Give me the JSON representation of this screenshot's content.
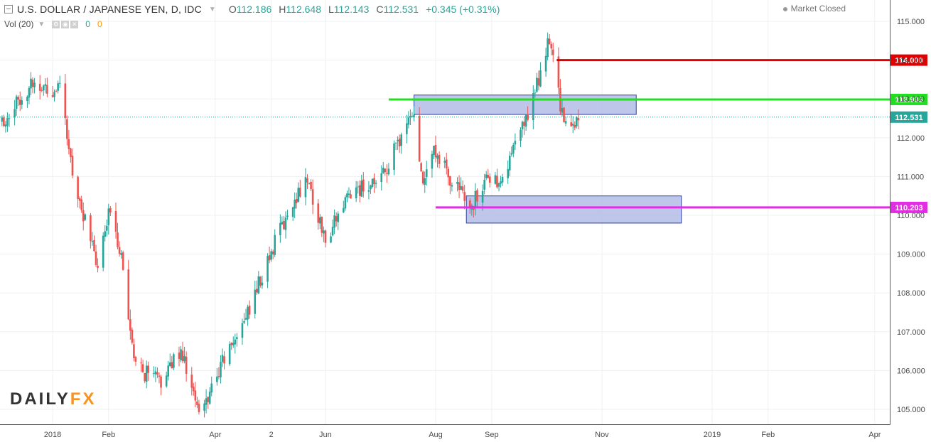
{
  "header": {
    "symbol": "U.S. DOLLAR / JAPANESE YEN, D, IDC",
    "open_label": "O",
    "open": "112.186",
    "high_label": "H",
    "high": "112.648",
    "low_label": "L",
    "low": "112.143",
    "close_label": "C",
    "close": "112.531",
    "change": "+0.345 (+0.31%)",
    "volume_label": "Vol (20)",
    "volume_value_1": "0",
    "volume_value_2": "0",
    "market_status": "Market Closed"
  },
  "watermark": "DAILYFX",
  "colors": {
    "up": "#26a69a",
    "down": "#ef5350",
    "line_114": "#e00000",
    "line_112986": "#22dd22",
    "line_110203": "#e22ee2",
    "last_price": "#26a69a",
    "zone_fill": "#b3bde6",
    "zone_stroke": "#2a3f9e"
  },
  "chart_data": {
    "type": "candlestick",
    "title": "U.S. DOLLAR / JAPANESE YEN, D, IDC",
    "xlabel": "",
    "ylabel": "",
    "ylim": [
      104.0,
      115.0
    ],
    "grid": true,
    "x_ticks": [
      "2018",
      "Feb",
      "Apr",
      "2",
      "Jun",
      "Aug",
      "Sep",
      "Nov",
      "2019",
      "Feb",
      "Apr"
    ],
    "y_ticks": [
      "105.000",
      "106.000",
      "107.000",
      "108.000",
      "109.000",
      "110.000",
      "111.000",
      "112.000",
      "113.000",
      "114.000",
      "115.000"
    ],
    "date_range": [
      "2017-12-04",
      "2018-10-19"
    ],
    "close_path": [
      [
        "2017-12-04",
        112.4
      ],
      [
        "2017-12-20",
        113.4
      ],
      [
        "2018-01-05",
        113.2
      ],
      [
        "2018-01-12",
        111.1
      ],
      [
        "2018-01-26",
        108.6
      ],
      [
        "2018-02-02",
        110.2
      ],
      [
        "2018-02-09",
        108.8
      ],
      [
        "2018-02-15",
        106.1
      ],
      [
        "2018-03-02",
        105.7
      ],
      [
        "2018-03-13",
        106.6
      ],
      [
        "2018-03-23",
        104.8
      ],
      [
        "2018-04-02",
        105.9
      ],
      [
        "2018-04-20",
        107.6
      ],
      [
        "2018-05-03",
        109.2
      ],
      [
        "2018-05-21",
        111.0
      ],
      [
        "2018-06-01",
        109.4
      ],
      [
        "2018-06-15",
        110.6
      ],
      [
        "2018-07-02",
        110.9
      ],
      [
        "2018-07-19",
        112.7
      ],
      [
        "2018-07-25",
        111.0
      ],
      [
        "2018-08-01",
        111.7
      ],
      [
        "2018-08-08",
        111.0
      ],
      [
        "2018-08-20",
        110.2
      ],
      [
        "2018-08-31",
        111.0
      ],
      [
        "2018-09-07",
        110.9
      ],
      [
        "2018-09-20",
        112.5
      ],
      [
        "2018-09-28",
        113.7
      ],
      [
        "2018-10-03",
        114.5
      ],
      [
        "2018-10-09",
        112.9
      ],
      [
        "2018-10-11",
        112.2
      ],
      [
        "2018-10-19",
        112.5
      ]
    ],
    "horizontal_lines": [
      {
        "value": 114.0,
        "label": "114.000",
        "from": "2018-10-07"
      },
      {
        "value": 112.986,
        "label": "112.986",
        "from": "2018-07-06"
      },
      {
        "value": 110.203,
        "label": "110.203",
        "from": "2018-08-01"
      }
    ],
    "last_price": {
      "value": 112.531,
      "label": "112.531"
    },
    "zones": [
      {
        "from": "2018-07-20",
        "to": "2018-11-20",
        "low": 112.6,
        "high": 113.1
      },
      {
        "from": "2018-08-18",
        "to": "2018-12-15",
        "low": 109.8,
        "high": 110.5
      }
    ]
  }
}
